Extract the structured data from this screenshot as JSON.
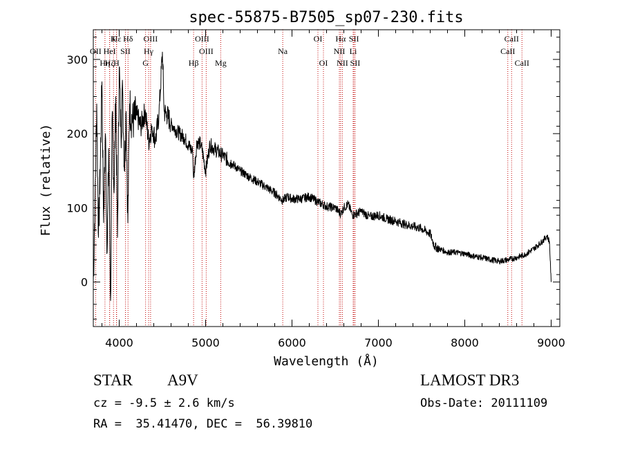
{
  "chart_data": {
    "type": "line",
    "title": "spec-55875-B7505_sp07-230.fits",
    "xlabel": "Wavelength (Å)",
    "ylabel": "Flux (relative)",
    "xlim": [
      3700,
      9100
    ],
    "ylim": [
      -60,
      340
    ],
    "xticks": [
      4000,
      5000,
      6000,
      7000,
      8000,
      9000
    ],
    "yticks": [
      0,
      100,
      200,
      300
    ],
    "series": [
      {
        "name": "flux",
        "color": "#000000",
        "x": [
          3700,
          3720,
          3740,
          3760,
          3780,
          3800,
          3820,
          3840,
          3860,
          3880,
          3900,
          3920,
          3940,
          3960,
          3980,
          4000,
          4020,
          4040,
          4060,
          4080,
          4100,
          4120,
          4150,
          4200,
          4250,
          4300,
          4340,
          4380,
          4420,
          4460,
          4500,
          4520,
          4550,
          4600,
          4650,
          4700,
          4750,
          4800,
          4850,
          4861,
          4900,
          4950,
          5000,
          5050,
          5100,
          5150,
          5200,
          5300,
          5400,
          5500,
          5600,
          5700,
          5800,
          5890,
          5950,
          6000,
          6100,
          6200,
          6300,
          6400,
          6500,
          6563,
          6600,
          6650,
          6700,
          6800,
          6900,
          7000,
          7100,
          7200,
          7300,
          7400,
          7500,
          7600,
          7650,
          7700,
          7800,
          7900,
          8000,
          8100,
          8200,
          8300,
          8400,
          8500,
          8600,
          8700,
          8800,
          8900,
          8950,
          8980,
          9000
        ],
        "y": [
          0,
          110,
          240,
          60,
          150,
          270,
          80,
          200,
          40,
          180,
          -25,
          230,
          120,
          250,
          60,
          290,
          200,
          260,
          150,
          230,
          80,
          240,
          215,
          225,
          210,
          230,
          190,
          210,
          190,
          225,
          310,
          230,
          225,
          215,
          205,
          200,
          195,
          185,
          175,
          140,
          190,
          185,
          150,
          185,
          180,
          175,
          170,
          160,
          150,
          142,
          135,
          128,
          120,
          110,
          115,
          112,
          112,
          115,
          108,
          102,
          100,
          92,
          100,
          105,
          90,
          95,
          88,
          90,
          85,
          82,
          78,
          75,
          72,
          65,
          48,
          45,
          40,
          40,
          38,
          35,
          33,
          30,
          28,
          30,
          33,
          37,
          45,
          55,
          62,
          55,
          0
        ]
      }
    ],
    "lines": [
      {
        "label": "Hε",
        "wavelength": 3970,
        "row": 0
      },
      {
        "label": "OII",
        "wavelength": 3727,
        "row": 1
      },
      {
        "label": "Hη",
        "wavelength": 3835,
        "row": 2
      },
      {
        "label": "Hζ",
        "wavelength": 3889,
        "row": 2
      },
      {
        "label": "K",
        "wavelength": 3934,
        "row": 0
      },
      {
        "label": "H",
        "wavelength": 3968,
        "row": 2
      },
      {
        "label": "HeI",
        "wavelength": 3889,
        "row": 1
      },
      {
        "label": "SII",
        "wavelength": 4072,
        "row": 1
      },
      {
        "label": "Hδ",
        "wavelength": 4102,
        "row": 0
      },
      {
        "label": "OIII",
        "wavelength": 4363,
        "row": 0
      },
      {
        "label": "Hγ",
        "wavelength": 4340,
        "row": 1
      },
      {
        "label": "G",
        "wavelength": 4305,
        "row": 2
      },
      {
        "label": "Hβ",
        "wavelength": 4861,
        "row": 2
      },
      {
        "label": "OIII",
        "wavelength": 4959,
        "row": 0
      },
      {
        "label": "OIII",
        "wavelength": 5007,
        "row": 1
      },
      {
        "label": "Mg",
        "wavelength": 5175,
        "row": 2
      },
      {
        "label": "Na",
        "wavelength": 5893,
        "row": 1
      },
      {
        "label": "OI",
        "wavelength": 6300,
        "row": 0
      },
      {
        "label": "OI",
        "wavelength": 6364,
        "row": 2
      },
      {
        "label": "Hα",
        "wavelength": 6563,
        "row": 0
      },
      {
        "label": "NII",
        "wavelength": 6548,
        "row": 1
      },
      {
        "label": "NII",
        "wavelength": 6583,
        "row": 2
      },
      {
        "label": "SII",
        "wavelength": 6717,
        "row": 0
      },
      {
        "label": "Li",
        "wavelength": 6708,
        "row": 1
      },
      {
        "label": "SII",
        "wavelength": 6731,
        "row": 2
      },
      {
        "label": "CaII",
        "wavelength": 8542,
        "row": 0
      },
      {
        "label": "CaII",
        "wavelength": 8498,
        "row": 1
      },
      {
        "label": "CaII",
        "wavelength": 8662,
        "row": 2
      }
    ]
  },
  "info": {
    "object_class": "STAR",
    "subclass": "A9V",
    "survey": "LAMOST DR3",
    "velocity": "cz = -9.5 ± 2.6 km/s",
    "obs_date": "Obs-Date: 20111109",
    "coords": "RA =  35.41470, DEC =  56.39810"
  }
}
